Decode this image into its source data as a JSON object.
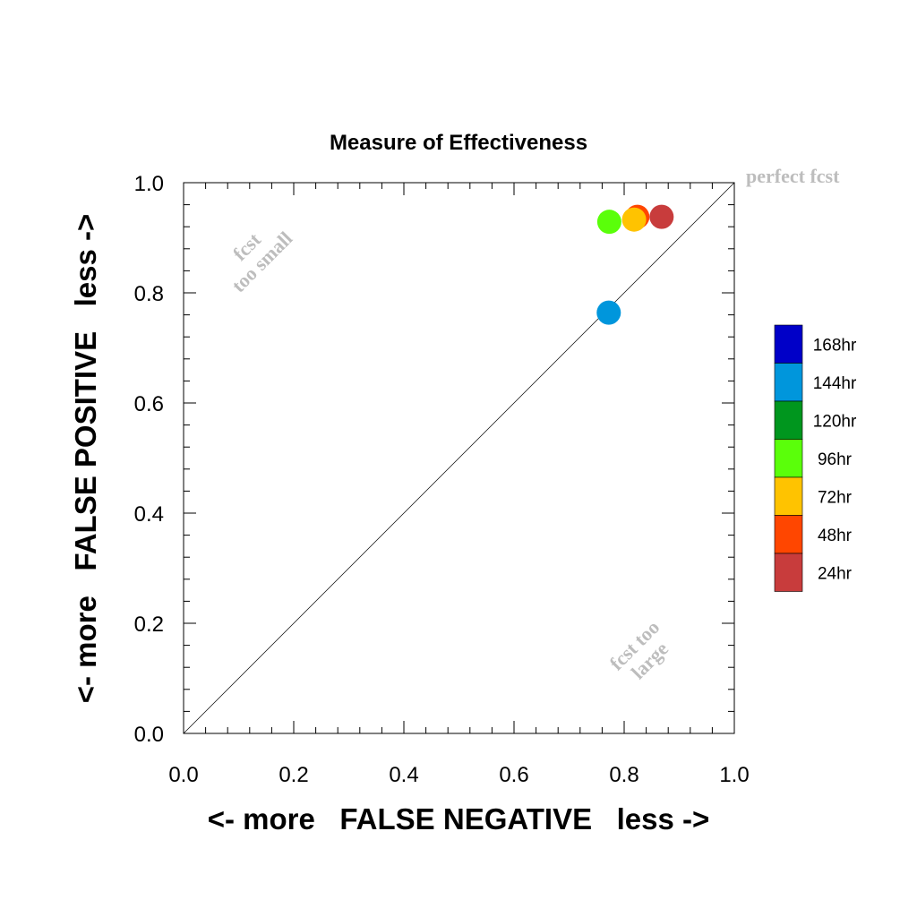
{
  "chart_data": {
    "type": "scatter",
    "title": "Measure of Effectiveness",
    "xlabel": "<- more   FALSE NEGATIVE   less ->",
    "ylabel": "<- more   FALSE POSITIVE   less ->",
    "xlim": [
      0.0,
      1.0
    ],
    "ylim": [
      0.0,
      1.0
    ],
    "xticks": [
      "0.0",
      "0.2",
      "0.4",
      "0.6",
      "0.8",
      "1.0"
    ],
    "yticks": [
      "0.0",
      "0.2",
      "0.4",
      "0.6",
      "0.8",
      "1.0"
    ],
    "grid": false,
    "reference_line": {
      "from": [
        0,
        0
      ],
      "to": [
        1,
        1
      ]
    },
    "annotations": {
      "perfect": "perfect fcst",
      "too_small_1": "fcst",
      "too_small_2": "too small",
      "too_large_1": "fcst too",
      "too_large_2": "large"
    },
    "legend": {
      "position": "right",
      "entries": [
        {
          "label": "168hr",
          "color": "#0000c8"
        },
        {
          "label": "144hr",
          "color": "#0096dc"
        },
        {
          "label": "120hr",
          "color": "#00961e"
        },
        {
          "label": "96hr",
          "color": "#5aff0a"
        },
        {
          "label": "72hr",
          "color": "#ffc300"
        },
        {
          "label": "48hr",
          "color": "#ff4600"
        },
        {
          "label": "24hr",
          "color": "#c83c3c"
        }
      ]
    },
    "series": [
      {
        "name": "144hr",
        "color": "#0096dc",
        "x": [
          0.772
        ],
        "y": [
          0.764
        ]
      },
      {
        "name": "48hr",
        "color": "#ff4600",
        "x": [
          0.824
        ],
        "y": [
          0.938
        ]
      },
      {
        "name": "24hr",
        "color": "#c83c3c",
        "x": [
          0.868
        ],
        "y": [
          0.938
        ]
      },
      {
        "name": "96hr",
        "color": "#5aff0a",
        "x": [
          0.773
        ],
        "y": [
          0.929
        ]
      },
      {
        "name": "72hr",
        "color": "#ffc300",
        "x": [
          0.818
        ],
        "y": [
          0.933
        ]
      }
    ]
  }
}
